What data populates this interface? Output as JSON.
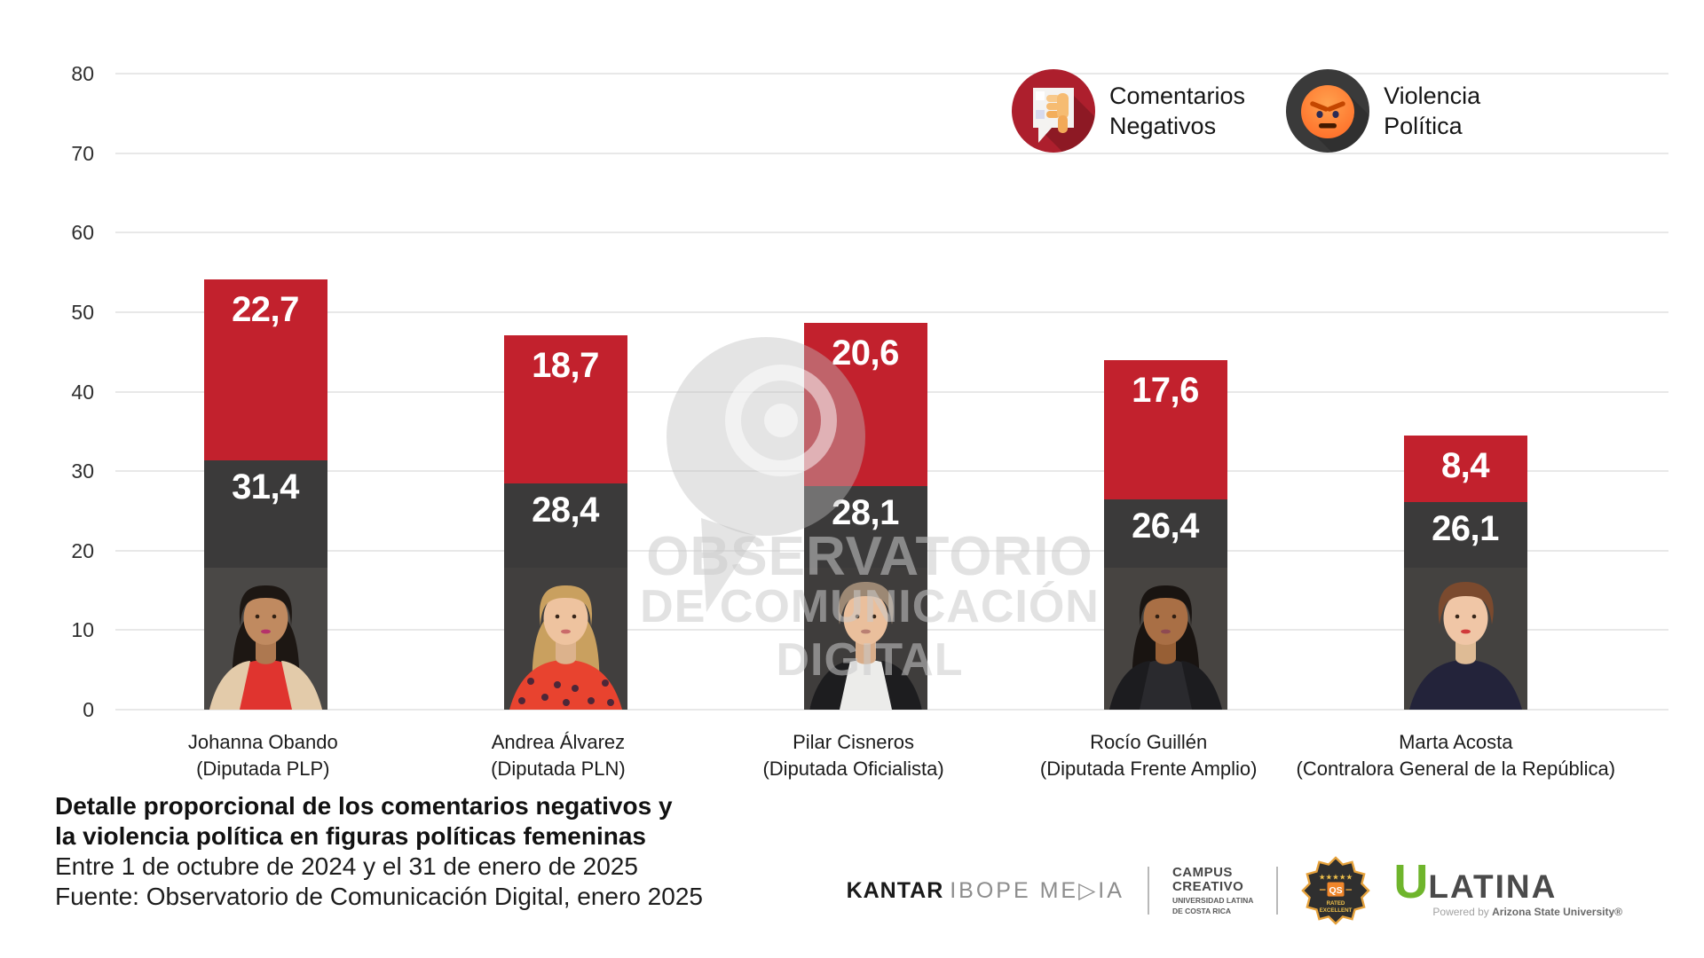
{
  "chart_data": {
    "type": "bar",
    "stacked": true,
    "title": "Detalle proporcional de los comentarios negativos y la violencia política en figuras políticas femeninas",
    "subtitle": "Entre 1 de octubre de 2024 y el 31 de enero de 2025",
    "source": "Fuente: Observatorio de Comunicación Digital, enero 2025",
    "categories": [
      "Johanna Obando (Diputada PLP)",
      "Andrea Álvarez (Diputada PLN)",
      "Pilar Cisneros (Diputada Oficialista)",
      "Rocío Guillén (Diputada Frente Amplio)",
      "Marta Acosta (Contralora General de la República)"
    ],
    "series": [
      {
        "name": "Comentarios Negativos",
        "position": "top",
        "color": "#c2212d",
        "values": [
          22.7,
          18.7,
          20.6,
          17.6,
          8.4
        ]
      },
      {
        "name": "Violencia Política",
        "position": "bottom",
        "color": "#3b3a3a",
        "values": [
          31.4,
          28.4,
          28.1,
          26.4,
          26.1
        ]
      }
    ],
    "ylim": [
      0,
      80
    ],
    "yticks": [
      0,
      10,
      20,
      30,
      40,
      50,
      60,
      70,
      80
    ],
    "grid": true,
    "legend_position": "top-right",
    "decimal_separator": ","
  },
  "legend": {
    "items": [
      {
        "line1": "Comentarios",
        "line2": "Negativos",
        "icon": "thumbs-down-speech-bubble-icon",
        "color": "#ad1f2d"
      },
      {
        "line1": "Violencia",
        "line2": "Política",
        "icon": "angry-face-icon",
        "color": "#3a3a3a"
      }
    ]
  },
  "bars": [
    {
      "label_line1": "Johanna Obando",
      "label_line2": "(Diputada PLP)",
      "avatar": {
        "bg": "#4a4846",
        "skin": "#c08a60",
        "skin2": "#ad7850",
        "hair": "#1d1713",
        "hair_style": "long",
        "top": "#e0342f",
        "jacket": "#e3cbaa",
        "lips": "#b5326a"
      }
    },
    {
      "label_line1": "Andrea Álvarez",
      "label_line2": "(Diputada PLN)",
      "avatar": {
        "bg": "#413f3e",
        "skin": "#eec39f",
        "skin2": "#dcb28c",
        "hair": "#c9a05f",
        "hair_style": "long",
        "top": "#e8432f",
        "pattern": "dots",
        "lips": "#c96a6a"
      }
    },
    {
      "label_line1": "Pilar Cisneros",
      "label_line2": "(Diputada Oficialista)",
      "avatar": {
        "bg": "#3f3d3c",
        "skin": "#eabf9c",
        "skin2": "#d8ad8a",
        "hair": "#9c8874",
        "hair_style": "short",
        "top": "#ececea",
        "jacket": "#1d1d1f",
        "lips": "#b97f72"
      }
    },
    {
      "label_line1": "Rocío Guillén",
      "label_line2": "(Diputada Frente Amplio)",
      "avatar": {
        "bg": "#474441",
        "skin": "#a96f45",
        "skin2": "#975f35",
        "hair": "#191411",
        "hair_style": "long",
        "top": "#2a2a2e",
        "jacket": "#1c1c1f",
        "lips": "#8e4a52"
      }
    },
    {
      "label_line1": "Marta Acosta",
      "label_line2": "(Contralora General de la República)",
      "avatar": {
        "bg": "#444240",
        "skin": "#f0c6a6",
        "skin2": "#debb95",
        "hair": "#7b4a2e",
        "hair_style": "short",
        "top": "#23233a",
        "lips": "#d03a3a"
      }
    }
  ],
  "watermark": {
    "line1": "OBSERVATORIO",
    "line2": "DE COMUNICACIÓN DIGITAL"
  },
  "caption": {
    "title_line1": "Detalle proporcional de los comentarios negativos y",
    "title_line2": "la violencia política en figuras políticas femeninas",
    "period": "Entre 1 de octubre de 2024 y el 31 de enero de 2025",
    "source": "Fuente: Observatorio de Comunicación Digital, enero 2025"
  },
  "footer": {
    "kantar": {
      "brand": "KANTAR",
      "suffix": "IBOPE ME▷IA"
    },
    "campus": {
      "line1": "CAMPUS",
      "line2": "CREATIVO",
      "sub1": "UNIVERSIDAD LATINA",
      "sub2": "DE COSTA RICA"
    },
    "badge": {
      "stars": "★★★★★",
      "brand": "QS",
      "rated1": "RATED",
      "rated2": "EXCELLENT"
    },
    "ulatina": {
      "u": "U",
      "rest": "LATINA",
      "powered_prefix": "Powered by ",
      "powered_brand": "Arizona State University®"
    }
  },
  "colors": {
    "comentarios_negativos": "#c2212d",
    "violencia_politica": "#3b3a3a",
    "gridline": "#e8e8e8",
    "watermark": "#cbcbcb"
  }
}
